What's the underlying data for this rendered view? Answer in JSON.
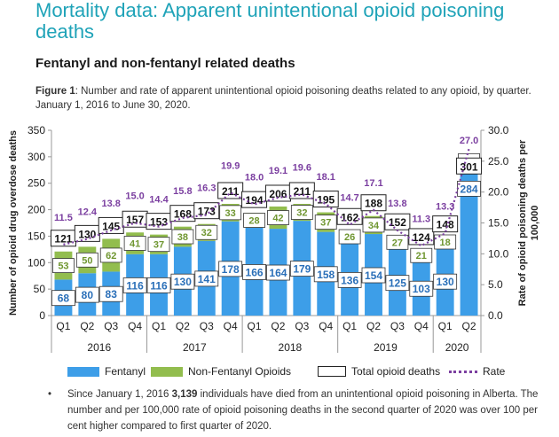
{
  "title": "Mortality data: Apparent unintentional opioid poisoning deaths",
  "subtitle": "Fentanyl and non-fentanyl related deaths",
  "caption": {
    "prefix": "Figure 1",
    "text": ": Number and rate of apparent unintentional opioid poisoning deaths related to any opioid, by quarter. January 1, 2016 to June 30, 2020."
  },
  "bullet": {
    "part1": "Since January 1, 2016 ",
    "highlight": "3,139",
    "part2": " individuals have died from an unintentional opioid poisoning in Alberta. The number and per 100,000 rate of opioid poisoning deaths in the second quarter of 2020 was over 100 per cent higher compared to first quarter of 2020."
  },
  "legend": {
    "fentanyl": "Fentanyl",
    "non_fentanyl": "Non-Fentanyl Opioids",
    "total": "Total opioid deaths",
    "rate": "Rate"
  },
  "colors": {
    "fentanyl": "#3d9ee8",
    "non_fentanyl": "#92bd4e",
    "rate": "#7b3fa0",
    "title": "#1fa3b8"
  },
  "chart_data": {
    "type": "bar",
    "stacked": true,
    "quarters": [
      "Q1",
      "Q2",
      "Q3",
      "Q4",
      "Q1",
      "Q2",
      "Q3",
      "Q4",
      "Q1",
      "Q2",
      "Q3",
      "Q4",
      "Q1",
      "Q2",
      "Q3",
      "Q4",
      "Q1",
      "Q2"
    ],
    "years": [
      {
        "label": "2016",
        "span": 4
      },
      {
        "label": "2017",
        "span": 4
      },
      {
        "label": "2018",
        "span": 4
      },
      {
        "label": "2019",
        "span": 4
      },
      {
        "label": "2020",
        "span": 2
      }
    ],
    "series": [
      {
        "name": "Fentanyl",
        "values": [
          68,
          80,
          83,
          116,
          116,
          130,
          141,
          178,
          166,
          164,
          179,
          158,
          136,
          154,
          125,
          103,
          130,
          284
        ]
      },
      {
        "name": "Non-Fentanyl Opioids",
        "values": [
          53,
          50,
          62,
          41,
          37,
          38,
          32,
          33,
          28,
          42,
          32,
          37,
          26,
          34,
          27,
          21,
          18,
          17
        ]
      }
    ],
    "totals": [
      121,
      130,
      145,
      157,
      153,
      168,
      173,
      211,
      194,
      206,
      211,
      195,
      162,
      188,
      152,
      124,
      148,
      301
    ],
    "rate": {
      "name": "Rate",
      "values": [
        11.5,
        12.4,
        13.8,
        15.0,
        14.4,
        15.8,
        16.3,
        19.9,
        18.0,
        19.1,
        19.6,
        18.1,
        14.7,
        17.1,
        13.8,
        11.3,
        13.3,
        27.0
      ]
    },
    "ylabel": "Number of opioid drug overdose deaths",
    "y2label": "Rate of opioid poisoning deaths per 100,000",
    "ylim": [
      0,
      350
    ],
    "yticks": [
      "0",
      "50",
      "100",
      "150",
      "200",
      "250",
      "300",
      "350"
    ],
    "y2lim": [
      0,
      30
    ],
    "y2ticks": [
      "0.0",
      "5.0",
      "10.0",
      "15.0",
      "20.0",
      "25.0",
      "30.0"
    ],
    "legend_position": "bottom"
  }
}
